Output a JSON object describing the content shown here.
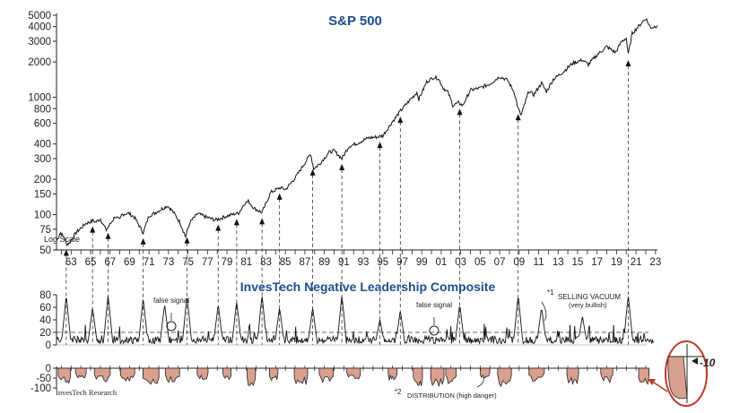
{
  "chart_data": [
    {
      "type": "line",
      "title": "S&P 500",
      "scale": "log",
      "scale_note": "Log Scale",
      "y_ticks": [
        50,
        75,
        100,
        150,
        200,
        300,
        400,
        600,
        800,
        1000,
        2000,
        3000,
        4000,
        5000
      ],
      "ylim": [
        50,
        5000
      ],
      "xlim": [
        1961.5,
        2023.2
      ],
      "x_tick_labels": [
        "63",
        "65",
        "67",
        "69",
        "71",
        "73",
        "75",
        "77",
        "79",
        "81",
        "83",
        "85",
        "87",
        "89",
        "91",
        "93",
        "95",
        "97",
        "99",
        "01",
        "03",
        "05",
        "07",
        "09",
        "11",
        "13",
        "15",
        "17",
        "19",
        "21",
        "23"
      ],
      "x_tick_years": [
        1963,
        1965,
        1967,
        1969,
        1971,
        1973,
        1975,
        1977,
        1979,
        1981,
        1983,
        1985,
        1987,
        1989,
        1991,
        1993,
        1995,
        1997,
        1999,
        2001,
        2003,
        2005,
        2007,
        2009,
        2011,
        2013,
        2015,
        2017,
        2019,
        2021,
        2023
      ],
      "x": [
        1961.5,
        1961.9,
        1962.3,
        1962.5,
        1962.8,
        1963.5,
        1964.5,
        1965.3,
        1965.5,
        1966.0,
        1966.6,
        1966.8,
        1967.5,
        1968.0,
        1968.2,
        1968.9,
        1969.5,
        1970.4,
        1971.0,
        1971.5,
        1972.0,
        1972.9,
        1973.5,
        1974.2,
        1974.75,
        1975.2,
        1976.0,
        1976.9,
        1977.8,
        1978.2,
        1978.8,
        1979.5,
        1980.2,
        1980.8,
        1981.2,
        1981.8,
        1982.6,
        1983.5,
        1984.5,
        1985.0,
        1986.0,
        1987.6,
        1987.9,
        1988.5,
        1989.5,
        1990.0,
        1990.8,
        1991.5,
        1992.5,
        1993.5,
        1994.5,
        1995.0,
        1996.0,
        1997.0,
        1998.5,
        1998.7,
        1999.5,
        2000.2,
        2000.7,
        2001.2,
        2001.7,
        2002.2,
        2002.8,
        2003.2,
        2004.0,
        2005.0,
        2006.0,
        2007.0,
        2007.8,
        2008.5,
        2008.9,
        2009.2,
        2010.0,
        2010.5,
        2011.3,
        2011.8,
        2012.5,
        2013.5,
        2014.5,
        2015.5,
        2016.1,
        2017.0,
        2018.0,
        2018.9,
        2019.5,
        2020.0,
        2020.2,
        2020.6,
        2021.0,
        2022.0,
        2022.5,
        2022.9,
        2023.2
      ],
      "values": [
        60,
        70,
        64,
        56,
        57,
        70,
        84,
        89,
        86,
        92,
        74,
        78,
        96,
        90,
        100,
        103,
        95,
        70,
        98,
        102,
        108,
        119,
        105,
        85,
        65,
        86,
        102,
        95,
        90,
        92,
        96,
        100,
        103,
        124,
        130,
        113,
        104,
        155,
        170,
        163,
        205,
        330,
        245,
        270,
        340,
        350,
        300,
        380,
        410,
        450,
        460,
        470,
        620,
        800,
        1100,
        960,
        1350,
        1480,
        1450,
        1200,
        1100,
        850,
        900,
        850,
        1150,
        1200,
        1300,
        1500,
        1400,
        1100,
        800,
        700,
        1130,
        1050,
        1320,
        1120,
        1420,
        1640,
        1950,
        2080,
        1900,
        2300,
        2700,
        2400,
        2980,
        3200,
        2300,
        3500,
        3800,
        4700,
        3900,
        4000,
        4100
      ],
      "signal_years": [
        1962.5,
        1965.2,
        1966.8,
        1970.4,
        1974.9,
        1978.1,
        1980.0,
        1982.6,
        1984.4,
        1987.8,
        1990.8,
        1994.7,
        1996.8,
        2002.9,
        2008.9,
        2020.2
      ]
    },
    {
      "type": "line",
      "title": "InvesTech Negative Leadership Composite",
      "y_ticks": [
        0,
        20,
        40,
        60,
        80
      ],
      "ylim": [
        0,
        80
      ],
      "threshold": 20,
      "annotations": [
        "false signal",
        "false signal",
        "SELLING VACUUM",
        "(very bullish)"
      ],
      "false_signal_label": "false signal",
      "selling_vacuum_label": "SELLING VACUUM",
      "selling_vacuum_note": "(very bullish)",
      "footnote_marker_1": "*1",
      "false_signal_years": [
        1973.8,
        2000.8
      ],
      "spike_years": [
        1962.5,
        1965.2,
        1966.8,
        1970.4,
        1972.6,
        1974.9,
        1978.1,
        1980.0,
        1982.6,
        1984.4,
        1987.8,
        1990.8,
        1994.7,
        1996.8,
        2002.9,
        2008.9,
        2011.3,
        2015.5,
        2020.2
      ],
      "spike_values": [
        80,
        60,
        80,
        75,
        65,
        80,
        65,
        70,
        80,
        60,
        60,
        80,
        40,
        55,
        65,
        80,
        60,
        45,
        80
      ]
    },
    {
      "type": "area",
      "y_ticks": [
        0,
        -50,
        -100
      ],
      "ylim": [
        -100,
        0
      ],
      "source": "InvesTech Research",
      "distribution_label": "DISTRIBUTION (high danger)",
      "footnote_marker_2": "*2",
      "dip_years": [
        1962.3,
        1964.0,
        1966.2,
        1968.8,
        1971.2,
        1973.4,
        1976.5,
        1979.0,
        1981.5,
        1983.8,
        1986.6,
        1989.2,
        1992.0,
        1996.0,
        1998.6,
        2000.6,
        2002.0,
        2005.5,
        2007.5,
        2010.8,
        2014.5,
        2018.0,
        2021.8
      ],
      "dip_values": [
        -80,
        -55,
        -70,
        -65,
        -85,
        -75,
        -60,
        -70,
        -90,
        -70,
        -85,
        -75,
        -60,
        -65,
        -95,
        -90,
        -80,
        -60,
        -95,
        -70,
        -80,
        -75,
        -90
      ]
    }
  ],
  "inset": {
    "value_label": "-10"
  }
}
